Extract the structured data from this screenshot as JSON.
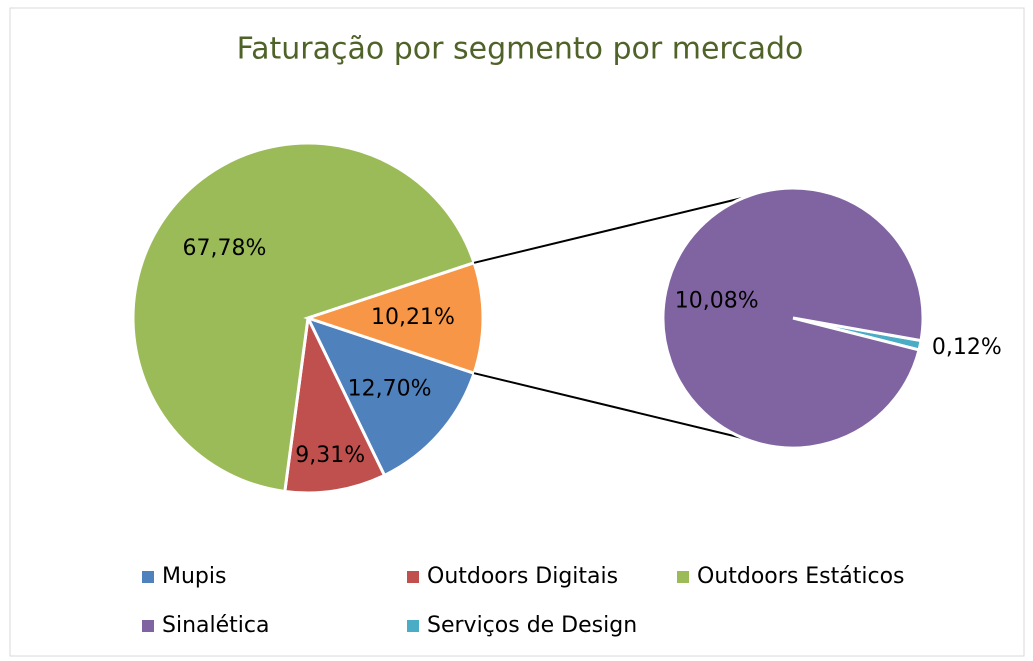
{
  "chart_data": {
    "type": "pie-of-pie",
    "title": "Faturação por segmento por mercado",
    "categories": [
      "Mupis",
      "Outdoors Digitais",
      "Outdoors Estáticos",
      "Sinalética",
      "Serviços de Design"
    ],
    "values": [
      12.7,
      9.31,
      67.78,
      10.08,
      0.12
    ],
    "value_labels": [
      "12,70%",
      "9,31%",
      "67,78%",
      "10,08%",
      "0,12%"
    ],
    "colors": [
      "#4f81bd",
      "#c0504d",
      "#9bbb59",
      "#8064a2",
      "#4bacc6"
    ],
    "other_color": "#f79646",
    "split_count": 2,
    "other": {
      "value": 10.21,
      "value_label": "10,21%"
    },
    "legend": "bottom"
  }
}
